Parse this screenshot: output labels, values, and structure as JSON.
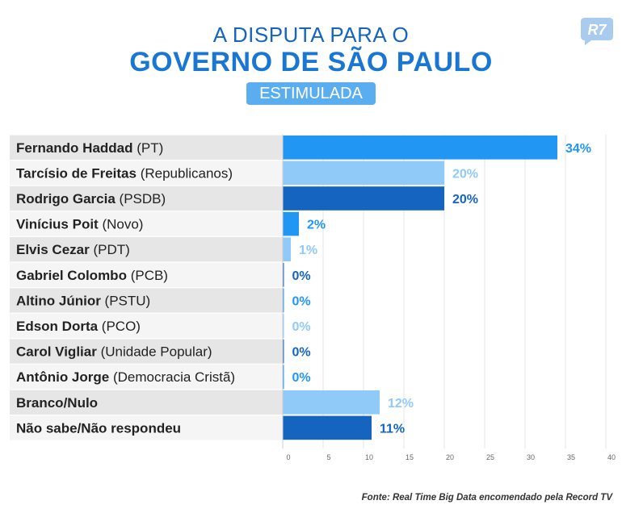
{
  "header": {
    "title_line1": "A DISPUTA PARA O",
    "title_line2": "GOVERNO DE SÃO PAULO",
    "badge": "ESTIMULADA",
    "logo_text": "R7"
  },
  "source": "Fonte: Real Time Big Data encomendado pela Record TV",
  "colors": {
    "dark": "#1565c0",
    "mid": "#2196f3",
    "light": "#90caf9",
    "row_alt": "#e6e6e6",
    "row": "#f5f5f5"
  },
  "chart_data": {
    "type": "bar",
    "orientation": "horizontal",
    "categories": [
      {
        "name": "Fernando Haddad",
        "party": " (PT)"
      },
      {
        "name": "Tarcísio de Freitas",
        "party": " (Republicanos)"
      },
      {
        "name": "Rodrigo Garcia",
        "party": " (PSDB)"
      },
      {
        "name": "Vinícius Poit",
        "party": " (Novo)"
      },
      {
        "name": "Elvis Cezar",
        "party": " (PDT)"
      },
      {
        "name": "Gabriel Colombo",
        "party": " (PCB)"
      },
      {
        "name": "Altino Júnior",
        "party": " (PSTU)"
      },
      {
        "name": "Edson Dorta",
        "party": " (PCO)"
      },
      {
        "name": "Carol Vigliar",
        "party": " (Unidade Popular)"
      },
      {
        "name": "Antônio Jorge",
        "party": " (Democracia Cristã)"
      },
      {
        "name": "Branco/Nulo",
        "party": ""
      },
      {
        "name": "Não sabe/Não respondeu",
        "party": ""
      }
    ],
    "values": [
      34,
      20,
      20,
      2,
      1,
      0,
      0,
      0,
      0,
      0,
      12,
      11
    ],
    "value_labels": [
      "34%",
      "20%",
      "20%",
      "2%",
      "1%",
      "0%",
      "0%",
      "0%",
      "0%",
      "0%",
      "12%",
      "11%"
    ],
    "bar_colors": [
      "mid",
      "light",
      "dark",
      "mid",
      "light",
      "dark",
      "mid",
      "light",
      "dark",
      "mid",
      "light",
      "dark"
    ],
    "xlim": [
      0,
      40
    ],
    "xticks": [
      0,
      5,
      10,
      15,
      20,
      25,
      30,
      35,
      40
    ],
    "grid": true
  }
}
